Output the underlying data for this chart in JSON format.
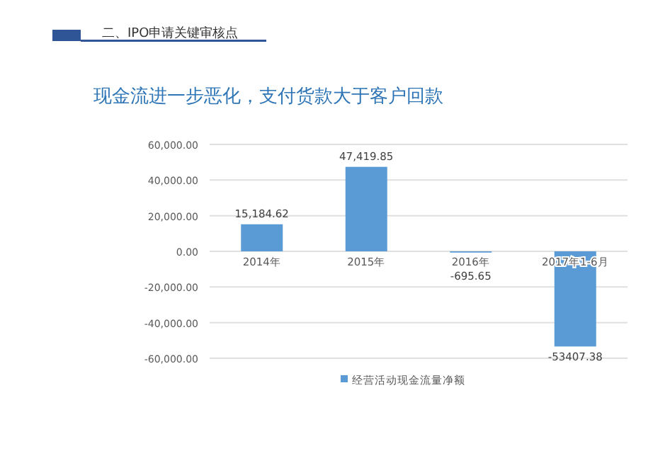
{
  "chart_data": {
    "type": "bar",
    "title": "二、IPO申请关键审核点",
    "subtitle": "现金流进一步恶化，支付货款大于客户回款",
    "categories": [
      "2014年",
      "2015年",
      "2016年",
      "2017年1-6月"
    ],
    "series": [
      {
        "name": "经营活动现金流量净额",
        "color": "#5b9bd5",
        "values": [
          15184.62,
          47419.85,
          -695.65,
          -53407.38
        ],
        "value_labels": [
          "15,184.62",
          "47,419.85",
          "-695.65",
          "-53407.38"
        ]
      }
    ],
    "ylim": [
      -60000,
      60000
    ],
    "yticks": [
      {
        "value": -60000,
        "label": "-60,000.00"
      },
      {
        "value": -40000,
        "label": "-40,000.00"
      },
      {
        "value": -20000,
        "label": "-20,000.00"
      },
      {
        "value": 0,
        "label": "0.00"
      },
      {
        "value": 20000,
        "label": "20,000.00"
      },
      {
        "value": 40000,
        "label": "40,000.00"
      },
      {
        "value": 60000,
        "label": "60,000.00"
      }
    ],
    "grid": "y",
    "legend": "bottom"
  }
}
